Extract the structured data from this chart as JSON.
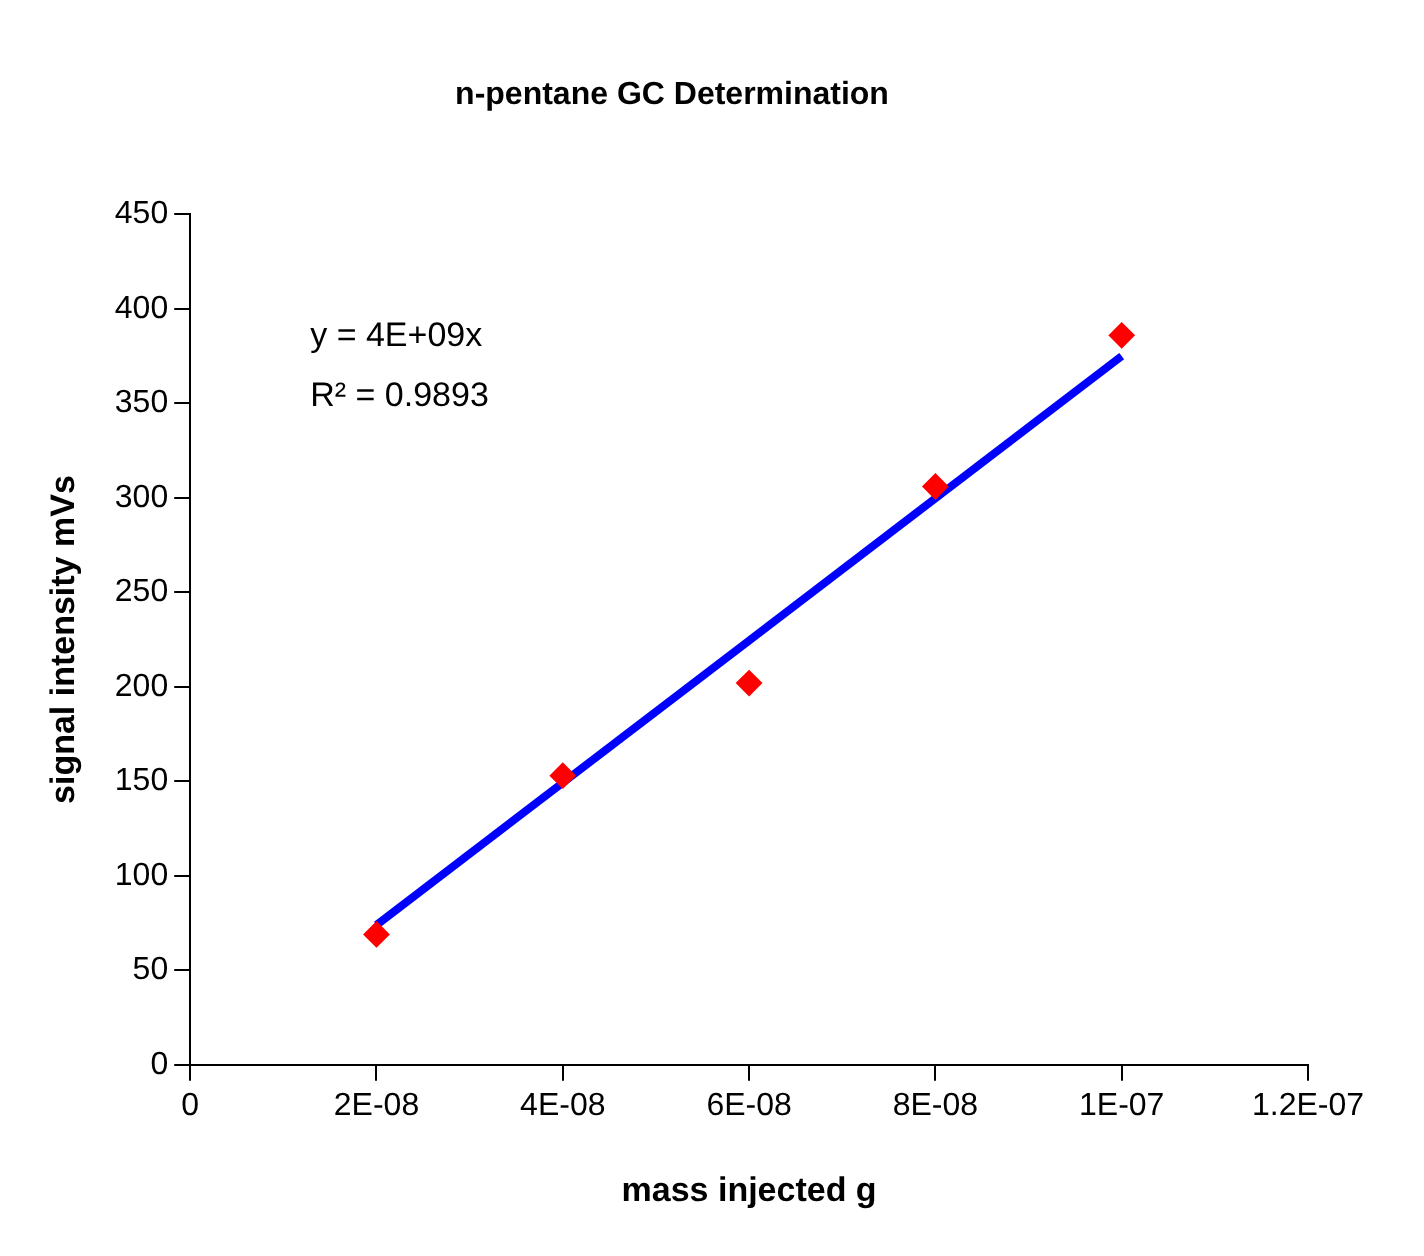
{
  "chart_data": {
    "type": "scatter",
    "title": "n-pentane GC Determination",
    "xlabel": "mass injected g",
    "ylabel": "signal intensity mVs",
    "xlim": [
      0,
      1.2e-07
    ],
    "xticks": [
      0,
      {
        "value": 2e-08,
        "label": "2E-08"
      },
      {
        "value": 4e-08,
        "label": "4E-08"
      },
      {
        "value": 6e-08,
        "label": "6E-08"
      },
      {
        "value": 8e-08,
        "label": "8E-08"
      },
      {
        "value": 1e-07,
        "label": "1E-07"
      },
      {
        "value": 1.2e-07,
        "label": "1.2E-07"
      }
    ],
    "ylim": [
      0,
      450
    ],
    "yticks": [
      0,
      50,
      100,
      150,
      200,
      250,
      300,
      350,
      400,
      450
    ],
    "grid": false,
    "legend": false,
    "marker": "diamond",
    "series": [
      {
        "color": "#ff0000",
        "x": [
          2e-08,
          4e-08,
          6e-08,
          8e-08,
          1e-07
        ],
        "values": [
          69,
          153,
          202,
          306,
          386
        ]
      },
      {
        "type": "line",
        "marker": "none",
        "color": "#0000ff",
        "x": [
          2e-08,
          1e-07
        ],
        "values": [
          74,
          375
        ]
      }
    ],
    "annotations": [
      "y = 4E+09x",
      "R² = 0.9893"
    ]
  }
}
